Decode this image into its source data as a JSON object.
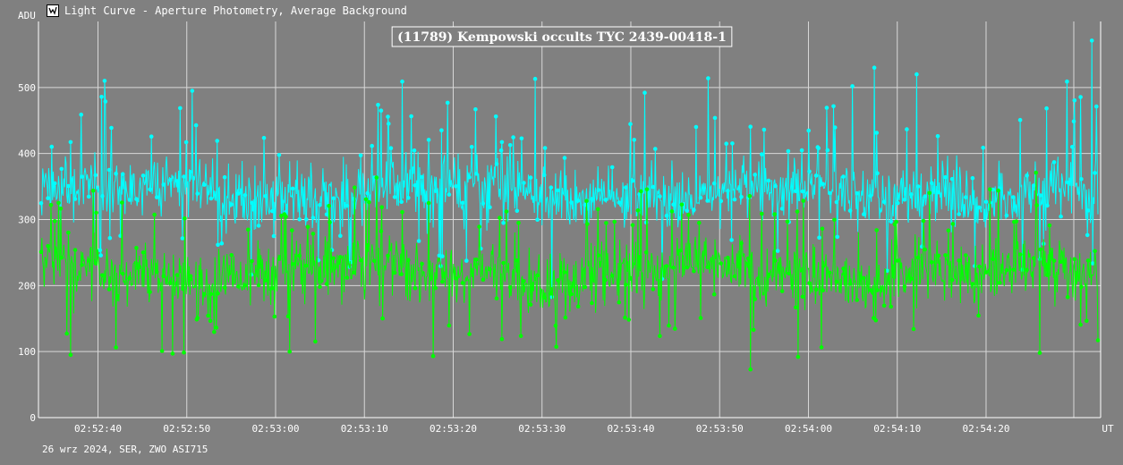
{
  "window": {
    "title": "Light Curve - Aperture Photometry, Average Background",
    "icon": "light-curve-app-icon"
  },
  "footer": {
    "text": "26 wrz 2024, SER, ZWO ASI715"
  },
  "chart_data": {
    "type": "line",
    "title": "(11789) Kempowski occults TYC 2439-00418-1",
    "ylabel": "ADU",
    "xlabel": "UT",
    "ylim": [
      0,
      600
    ],
    "yticks": [
      0,
      100,
      200,
      300,
      400,
      500
    ],
    "xlim": [
      "02:52:33.3",
      "02:54:32.9"
    ],
    "xticks": [
      "02:52:40",
      "02:52:50",
      "02:53:00",
      "02:53:10",
      "02:53:20",
      "02:53:30",
      "02:53:40",
      "02:53:50",
      "02:54:00",
      "02:54:10",
      "02:54:20"
    ],
    "grid": true,
    "series": [
      {
        "color": "#00ffff",
        "baseline": 340,
        "noise": 35,
        "spike_max": 570,
        "points": [
          {
            "t": "02:52:40.5",
            "v": 510
          },
          {
            "t": "02:52:50.4",
            "v": 495
          },
          {
            "t": "02:53:14.2",
            "v": 509
          },
          {
            "t": "02:53:29.2",
            "v": 513
          },
          {
            "t": "02:53:41.6",
            "v": 492
          },
          {
            "t": "02:53:48.8",
            "v": 514
          },
          {
            "t": "02:54:05.1",
            "v": 502
          },
          {
            "t": "02:54:07.6",
            "v": 530
          },
          {
            "t": "02:54:12.4",
            "v": 520
          },
          {
            "t": "02:54:29.4",
            "v": 509
          },
          {
            "t": "02:54:32.2",
            "v": 571
          }
        ]
      },
      {
        "color": "#00ff00",
        "baseline": 220,
        "noise": 35,
        "spike_min": 73,
        "points": [
          {
            "t": "02:52:36.6",
            "v": 95
          },
          {
            "t": "02:52:48.2",
            "v": 97
          },
          {
            "t": "02:53:01.4",
            "v": 100
          },
          {
            "t": "02:53:17.7",
            "v": 93
          },
          {
            "t": "02:53:53.6",
            "v": 73
          },
          {
            "t": "02:53:59.0",
            "v": 92
          },
          {
            "t": "02:54:26.3",
            "v": 98
          }
        ]
      }
    ]
  }
}
